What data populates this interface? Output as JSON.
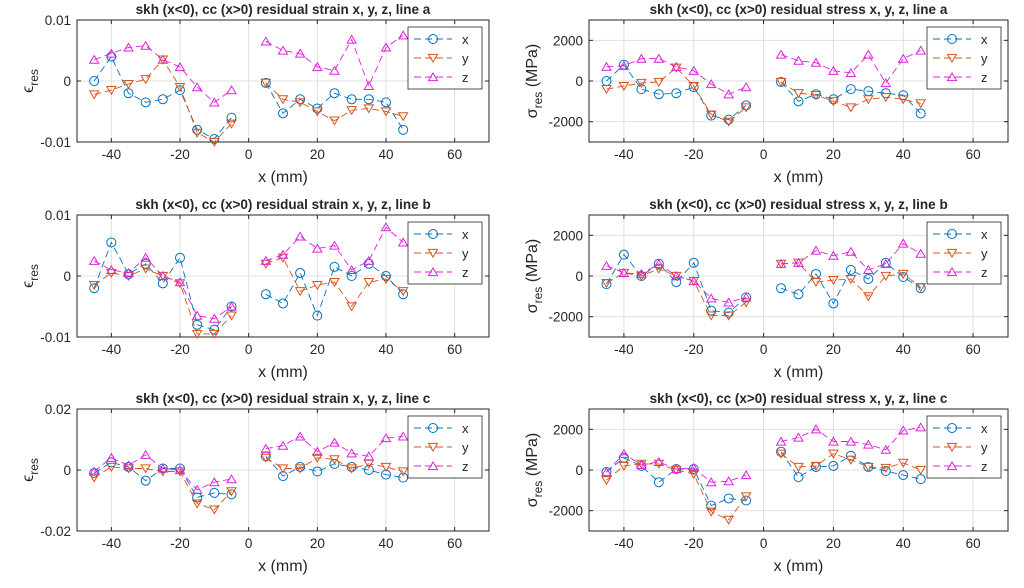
{
  "chart_data": [
    {
      "id": "strain_a",
      "type": "line",
      "title": "skh (x<0), cc (x>0) residual strain x, y, z, line a",
      "xlabel": "x (mm)",
      "ylabel_main": "ϵ",
      "ylabel_sub": "res",
      "ylabel_unit": "",
      "xlim": [
        -50,
        70
      ],
      "ylim": [
        -0.01,
        0.01
      ],
      "xticks": [
        -40,
        -20,
        0,
        20,
        40,
        60
      ],
      "yticks": [
        -0.01,
        0,
        0.01
      ],
      "xtick_labels": [
        "-40",
        "-20",
        "0",
        "20",
        "40",
        "60"
      ],
      "ytick_labels": [
        "-0.01",
        "0",
        "0.01"
      ],
      "legend": [
        "x",
        "y",
        "z"
      ],
      "series": [
        {
          "name": "x",
          "x": [
            -45,
            -40,
            -35,
            -30,
            -25,
            -20,
            -15,
            -10,
            -5,
            0,
            5,
            10,
            15,
            20,
            25,
            30,
            35,
            40,
            45
          ],
          "y": [
            0.0,
            0.004,
            -0.002,
            -0.0035,
            -0.003,
            -0.0015,
            -0.008,
            -0.0095,
            -0.006,
            null,
            -0.0003,
            -0.0053,
            -0.003,
            -0.0045,
            -0.002,
            -0.003,
            -0.003,
            -0.0035,
            -0.008
          ]
        },
        {
          "name": "y",
          "x": [
            -45,
            -40,
            -35,
            -30,
            -25,
            -20,
            -15,
            -10,
            -5,
            0,
            5,
            10,
            15,
            20,
            25,
            30,
            35,
            40,
            45
          ],
          "y": [
            -0.0022,
            -0.0015,
            -0.0005,
            0.0003,
            0.0035,
            -0.001,
            -0.0085,
            -0.01,
            -0.007,
            null,
            -0.0003,
            -0.003,
            -0.0035,
            -0.005,
            -0.0065,
            -0.0048,
            -0.0045,
            -0.005,
            -0.0058
          ]
        },
        {
          "name": "z",
          "x": [
            -45,
            -40,
            -35,
            -30,
            -25,
            -20,
            -15,
            -10,
            -5,
            0,
            5,
            10,
            15,
            20,
            25,
            30,
            35,
            40,
            45
          ],
          "y": [
            0.0035,
            0.0045,
            0.0055,
            0.0058,
            0.0035,
            0.0023,
            -0.001,
            -0.0035,
            -0.0015,
            null,
            0.0065,
            0.005,
            0.0045,
            0.0023,
            0.0017,
            0.0068,
            -0.0008,
            0.0055,
            0.0075
          ]
        }
      ]
    },
    {
      "id": "stress_a",
      "type": "line",
      "title": "skh (x<0), cc (x>0) residual stress x, y, z, line a",
      "xlabel": "x (mm)",
      "ylabel_main": "σ",
      "ylabel_sub": "res",
      "ylabel_unit": " (MPa)",
      "xlim": [
        -50,
        70
      ],
      "ylim": [
        -3000,
        3000
      ],
      "xticks": [
        -40,
        -20,
        0,
        20,
        40,
        60
      ],
      "yticks": [
        -2000,
        0,
        2000
      ],
      "xtick_labels": [
        "-40",
        "-20",
        "0",
        "20",
        "40",
        "60"
      ],
      "ytick_labels": [
        "-2000",
        "0",
        "2000"
      ],
      "legend": [
        "x",
        "y",
        "z"
      ],
      "series": [
        {
          "name": "x",
          "x": [
            -45,
            -40,
            -35,
            -30,
            -25,
            -20,
            -15,
            -10,
            -5,
            0,
            5,
            10,
            15,
            20,
            25,
            30,
            35,
            40,
            45
          ],
          "y": [
            0,
            800,
            -400,
            -650,
            -600,
            -300,
            -1700,
            -1900,
            -1200,
            null,
            -50,
            -1000,
            -650,
            -900,
            -400,
            -500,
            -600,
            -700,
            -1600
          ]
        },
        {
          "name": "y",
          "x": [
            -45,
            -40,
            -35,
            -30,
            -25,
            -20,
            -15,
            -10,
            -5,
            0,
            5,
            10,
            15,
            20,
            25,
            30,
            35,
            40,
            45
          ],
          "y": [
            -400,
            -250,
            -100,
            -50,
            650,
            -250,
            -1650,
            -2000,
            -1300,
            null,
            -50,
            -600,
            -700,
            -1000,
            -1300,
            -900,
            -800,
            -900,
            -1100
          ]
        },
        {
          "name": "z",
          "x": [
            -45,
            -40,
            -35,
            -30,
            -25,
            -20,
            -15,
            -10,
            -5,
            0,
            5,
            10,
            15,
            20,
            25,
            30,
            35,
            40,
            45
          ],
          "y": [
            700,
            750,
            1100,
            1100,
            700,
            500,
            -150,
            -650,
            -300,
            null,
            1300,
            1000,
            900,
            500,
            400,
            1300,
            -100,
            1100,
            1500
          ]
        }
      ]
    },
    {
      "id": "strain_b",
      "type": "line",
      "title": "skh (x<0), cc (x>0) residual strain x, y, z, line b",
      "xlabel": "x (mm)",
      "ylabel_main": "ϵ",
      "ylabel_sub": "res",
      "ylabel_unit": "",
      "xlim": [
        -50,
        70
      ],
      "ylim": [
        -0.01,
        0.01
      ],
      "xticks": [
        -40,
        -20,
        0,
        20,
        40,
        60
      ],
      "yticks": [
        -0.01,
        0,
        0.01
      ],
      "xtick_labels": [
        "-40",
        "-20",
        "0",
        "20",
        "40",
        "60"
      ],
      "ytick_labels": [
        "-0.01",
        "0",
        "0.01"
      ],
      "legend": [
        "x",
        "y",
        "z"
      ],
      "series": [
        {
          "name": "x",
          "x": [
            -45,
            -40,
            -35,
            -30,
            -25,
            -20,
            -15,
            -10,
            -5,
            0,
            5,
            10,
            15,
            20,
            25,
            30,
            35,
            40,
            45
          ],
          "y": [
            -0.002,
            0.0055,
            0.0003,
            0.002,
            -0.0012,
            0.003,
            -0.008,
            -0.0088,
            -0.005,
            null,
            -0.003,
            -0.0045,
            0.0005,
            -0.0065,
            0.0015,
            0.0,
            0.002,
            0.0,
            -0.003
          ]
        },
        {
          "name": "y",
          "x": [
            -45,
            -40,
            -35,
            -30,
            -25,
            -20,
            -15,
            -10,
            -5,
            0,
            5,
            10,
            15,
            20,
            25,
            30,
            35,
            40,
            45
          ],
          "y": [
            -0.0015,
            0.0005,
            0.0,
            0.0012,
            0.0,
            -0.0012,
            -0.0095,
            -0.0095,
            -0.0065,
            null,
            0.002,
            0.003,
            -0.0025,
            -0.0015,
            -0.001,
            -0.005,
            -0.001,
            -0.0005,
            -0.0025
          ]
        },
        {
          "name": "z",
          "x": [
            -45,
            -40,
            -35,
            -30,
            -25,
            -20,
            -15,
            -10,
            -5,
            0,
            5,
            10,
            15,
            20,
            25,
            30,
            35,
            40,
            45
          ],
          "y": [
            0.0025,
            0.001,
            0.0005,
            0.003,
            0.0,
            -0.001,
            -0.0065,
            -0.007,
            -0.005,
            null,
            0.0025,
            0.0035,
            0.0065,
            0.0045,
            0.005,
            0.001,
            0.0025,
            0.008,
            0.0055
          ]
        }
      ]
    },
    {
      "id": "stress_b",
      "type": "line",
      "title": "skh (x<0), cc (x>0) residual stress x, y, z, line b",
      "xlabel": "x (mm)",
      "ylabel_main": "σ",
      "ylabel_sub": "res",
      "ylabel_unit": " (MPa)",
      "xlim": [
        -50,
        70
      ],
      "ylim": [
        -3000,
        3000
      ],
      "xticks": [
        -40,
        -20,
        0,
        20,
        40,
        60
      ],
      "yticks": [
        -2000,
        0,
        2000
      ],
      "xtick_labels": [
        "-40",
        "-20",
        "0",
        "20",
        "40",
        "60"
      ],
      "ytick_labels": [
        "-2000",
        "0",
        "2000"
      ],
      "legend": [
        "x",
        "y",
        "z"
      ],
      "series": [
        {
          "name": "x",
          "x": [
            -45,
            -40,
            -35,
            -30,
            -25,
            -20,
            -15,
            -10,
            -5,
            0,
            5,
            10,
            15,
            20,
            25,
            30,
            35,
            40,
            45
          ],
          "y": [
            -400,
            1050,
            0,
            600,
            -300,
            650,
            -1700,
            -1800,
            -1050,
            null,
            -600,
            -900,
            100,
            -1350,
            300,
            -150,
            650,
            -50,
            -600
          ]
        },
        {
          "name": "y",
          "x": [
            -45,
            -40,
            -35,
            -30,
            -25,
            -20,
            -15,
            -10,
            -5,
            0,
            5,
            10,
            15,
            20,
            25,
            30,
            35,
            40,
            45
          ],
          "y": [
            -350,
            150,
            0,
            350,
            0,
            -250,
            -1950,
            -1950,
            -1300,
            null,
            600,
            650,
            -300,
            -200,
            -150,
            -1000,
            0,
            100,
            -550
          ]
        },
        {
          "name": "z",
          "x": [
            -45,
            -40,
            -35,
            -30,
            -25,
            -20,
            -15,
            -10,
            -5,
            0,
            5,
            10,
            15,
            20,
            25,
            30,
            35,
            40,
            45
          ],
          "y": [
            500,
            150,
            100,
            600,
            0,
            -250,
            -1100,
            -1300,
            -1050,
            null,
            600,
            650,
            1250,
            1000,
            1200,
            300,
            600,
            1600,
            1100
          ]
        }
      ]
    },
    {
      "id": "strain_c",
      "type": "line",
      "title": "skh (x<0), cc (x>0) residual strain x, y, z, line c",
      "xlabel": "x (mm)",
      "ylabel_main": "ϵ",
      "ylabel_sub": "res",
      "ylabel_unit": "",
      "xlim": [
        -50,
        70
      ],
      "ylim": [
        -0.02,
        0.02
      ],
      "xticks": [
        -40,
        -20,
        0,
        20,
        40,
        60
      ],
      "yticks": [
        -0.02,
        0,
        0.02
      ],
      "xtick_labels": [
        "-40",
        "-20",
        "0",
        "20",
        "40",
        "60"
      ],
      "ytick_labels": [
        "-0.02",
        "0",
        "0.02"
      ],
      "legend": [
        "x",
        "y",
        "z"
      ],
      "series": [
        {
          "name": "x",
          "x": [
            -45,
            -40,
            -35,
            -30,
            -25,
            -20,
            -15,
            -10,
            -5,
            0,
            5,
            10,
            15,
            20,
            25,
            30,
            35,
            40,
            45
          ],
          "y": [
            -0.001,
            0.0025,
            0.001,
            -0.0035,
            0.0005,
            0.0005,
            -0.009,
            -0.0075,
            -0.008,
            null,
            0.0045,
            -0.002,
            0.001,
            -0.0005,
            0.002,
            0.001,
            0.0,
            -0.0015,
            -0.0025
          ]
        },
        {
          "name": "y",
          "x": [
            -45,
            -40,
            -35,
            -30,
            -25,
            -20,
            -15,
            -10,
            -5,
            0,
            5,
            10,
            15,
            20,
            25,
            30,
            35,
            40,
            45
          ],
          "y": [
            -0.0025,
            0.001,
            0.0005,
            0.0005,
            -0.0005,
            -0.0005,
            -0.011,
            -0.013,
            -0.007,
            null,
            0.004,
            0.0005,
            0.0005,
            0.004,
            0.0035,
            0.0005,
            0.002,
            0.001,
            -0.0005
          ]
        },
        {
          "name": "z",
          "x": [
            -45,
            -40,
            -35,
            -30,
            -25,
            -20,
            -15,
            -10,
            -5,
            0,
            5,
            10,
            15,
            20,
            25,
            30,
            35,
            40,
            45
          ],
          "y": [
            -0.0005,
            0.004,
            0.0015,
            0.005,
            0.0005,
            0.0,
            -0.0065,
            -0.004,
            -0.003,
            null,
            0.007,
            0.008,
            0.011,
            0.006,
            0.009,
            0.0055,
            0.0045,
            0.0105,
            0.011
          ]
        }
      ]
    },
    {
      "id": "stress_c",
      "type": "line",
      "title": "skh (x<0), cc (x>0) residual stress x, y, z, line c",
      "xlabel": "x (mm)",
      "ylabel_main": "σ",
      "ylabel_sub": "res",
      "ylabel_unit": " (MPa)",
      "xlim": [
        -50,
        70
      ],
      "ylim": [
        -3000,
        3000
      ],
      "xticks": [
        -40,
        -20,
        0,
        20,
        40,
        60
      ],
      "yticks": [
        -2000,
        0,
        2000
      ],
      "xtick_labels": [
        "-40",
        "-20",
        "0",
        "20",
        "40",
        "60"
      ],
      "ytick_labels": [
        "-2000",
        "0",
        "2000"
      ],
      "legend": [
        "x",
        "y",
        "z"
      ],
      "series": [
        {
          "name": "x",
          "x": [
            -45,
            -40,
            -35,
            -30,
            -25,
            -20,
            -15,
            -10,
            -5,
            0,
            5,
            10,
            15,
            20,
            25,
            30,
            35,
            40,
            45
          ],
          "y": [
            -100,
            600,
            200,
            -600,
            50,
            50,
            -1750,
            -1400,
            -1500,
            null,
            900,
            -350,
            150,
            200,
            700,
            150,
            -50,
            -250,
            -450
          ]
        },
        {
          "name": "y",
          "x": [
            -45,
            -40,
            -35,
            -30,
            -25,
            -20,
            -15,
            -10,
            -5,
            0,
            5,
            10,
            15,
            20,
            25,
            30,
            35,
            40,
            45
          ],
          "y": [
            -500,
            200,
            300,
            300,
            0,
            -200,
            -2050,
            -2450,
            -1300,
            null,
            800,
            150,
            200,
            800,
            500,
            150,
            100,
            350,
            0
          ]
        },
        {
          "name": "z",
          "x": [
            -45,
            -40,
            -35,
            -30,
            -25,
            -20,
            -15,
            -10,
            -5,
            0,
            5,
            10,
            15,
            20,
            25,
            30,
            35,
            40,
            45
          ],
          "y": [
            -100,
            800,
            250,
            400,
            50,
            100,
            -600,
            -550,
            -250,
            null,
            1400,
            1600,
            2000,
            1400,
            1400,
            1250,
            1000,
            1950,
            2100
          ]
        }
      ]
    }
  ],
  "colors": {
    "x": "#0072BD",
    "y": "#D95319",
    "z": "#E020E0",
    "text": "#262626",
    "grid": "#dfdfdf"
  },
  "markers": {
    "x": "circle",
    "y": "triangle-down",
    "z": "triangle-up"
  }
}
